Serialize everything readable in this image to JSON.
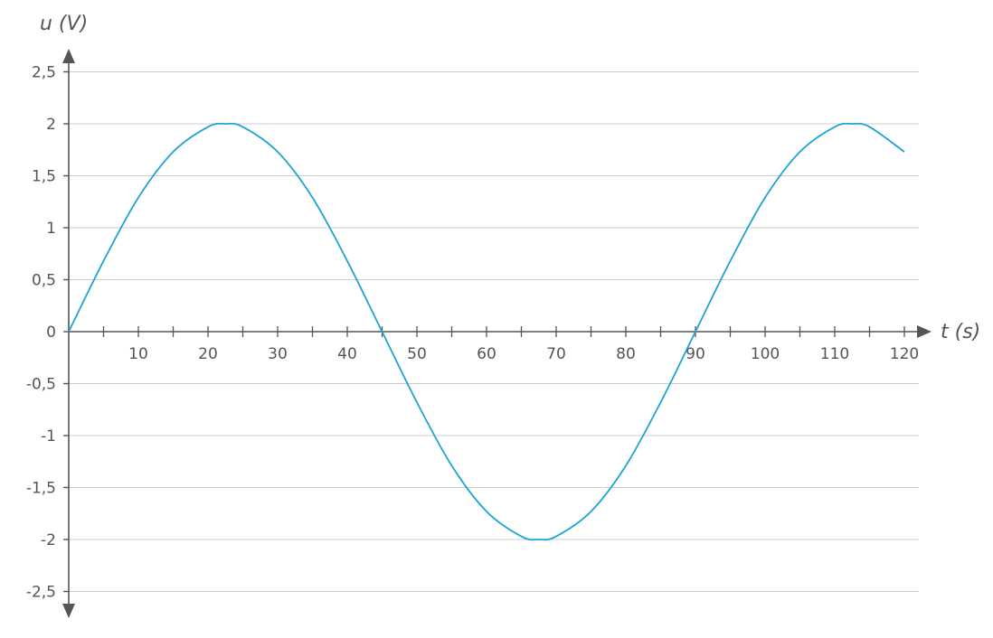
{
  "chart_data": {
    "type": "line",
    "xlabel": "t (s)",
    "ylabel": "u (V)",
    "xlim": [
      0,
      120
    ],
    "ylim": [
      -2.5,
      2.5
    ],
    "x_ticks": [
      10,
      20,
      30,
      40,
      50,
      60,
      70,
      80,
      90,
      100,
      110,
      120
    ],
    "x_tick_labels": [
      "10",
      "20",
      "30",
      "40",
      "50",
      "60",
      "70",
      "80",
      "90",
      "100",
      "110",
      "120"
    ],
    "y_ticks": [
      2.5,
      2,
      1.5,
      1,
      0.5,
      0,
      -0.5,
      -1,
      -1.5,
      -2,
      -2.5
    ],
    "y_tick_labels": [
      "2,5",
      "2",
      "1,5",
      "1",
      "0,5",
      "0",
      "-0,5",
      "-1",
      "-1,5",
      "-2",
      "-2,5"
    ],
    "grid": "horizontal",
    "series": [
      {
        "x": [
          0,
          5,
          10,
          15,
          20,
          22.5,
          25,
          30,
          35,
          40,
          45,
          50,
          55,
          60,
          65,
          67.5,
          70,
          75,
          80,
          85,
          90,
          95,
          100,
          105,
          110,
          112.5,
          115,
          120
        ],
        "y": [
          0,
          0.68,
          1.29,
          1.73,
          1.97,
          2.0,
          1.97,
          1.73,
          1.29,
          0.68,
          0,
          -0.68,
          -1.29,
          -1.73,
          -1.97,
          -2.0,
          -1.97,
          -1.73,
          -1.29,
          -0.68,
          0,
          0.68,
          1.29,
          1.73,
          1.97,
          2.0,
          1.97,
          1.73
        ],
        "color": "#1ea3d4"
      }
    ],
    "colors": {
      "axis": "#555555",
      "grid": "#cccccc",
      "curve": "#1ea3d4"
    }
  }
}
